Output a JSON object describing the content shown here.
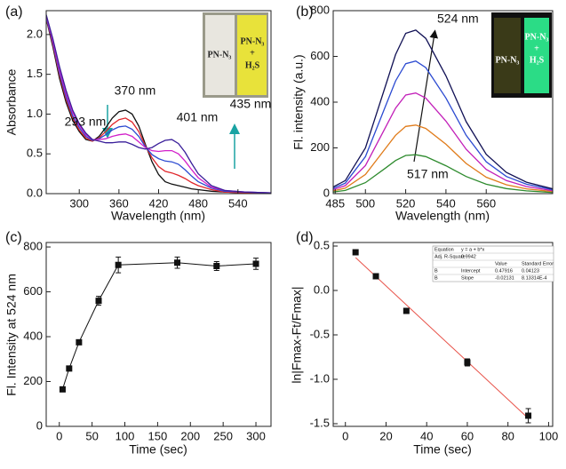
{
  "chart_data": [
    {
      "type": "line",
      "panel_label": "(a)",
      "xlabel": "Wavelength (nm)",
      "ylabel": "Absorbance",
      "xlim": [
        250,
        590
      ],
      "ylim": [
        0,
        2.3
      ],
      "xticks": [
        300,
        360,
        420,
        480,
        540
      ],
      "yticks": [
        {
          "value": 0,
          "label": "0.0"
        },
        0.5,
        {
          "value": 1,
          "label": "1.0"
        },
        1.5,
        {
          "value": 2,
          "label": "2.0"
        }
      ],
      "annotations": [
        "293 nm",
        "370 nm",
        "401 nm",
        "435 nm"
      ],
      "inset": {
        "labels": [
          "PN-N₃",
          "PN-N₃",
          "+",
          "H₂S"
        ]
      },
      "x": [
        250,
        260,
        270,
        280,
        290,
        300,
        310,
        320,
        330,
        340,
        350,
        360,
        370,
        380,
        390,
        400,
        410,
        420,
        430,
        440,
        450,
        460,
        470,
        480,
        500,
        520,
        550,
        590
      ],
      "series": [
        {
          "color": "#111111",
          "values": [
            2.2,
            1.85,
            1.45,
            1.15,
            0.92,
            0.78,
            0.68,
            0.66,
            0.72,
            0.83,
            0.95,
            1.03,
            1.05,
            1.0,
            0.85,
            0.62,
            0.4,
            0.24,
            0.15,
            0.12,
            0.1,
            0.08,
            0.06,
            0.05,
            0.03,
            0.02,
            0.01,
            0.01
          ]
        },
        {
          "color": "#e0262b",
          "values": [
            2.21,
            1.88,
            1.49,
            1.19,
            0.95,
            0.8,
            0.7,
            0.66,
            0.7,
            0.78,
            0.87,
            0.93,
            0.95,
            0.9,
            0.78,
            0.6,
            0.45,
            0.34,
            0.28,
            0.26,
            0.23,
            0.19,
            0.14,
            0.1,
            0.05,
            0.02,
            0.01,
            0.01
          ]
        },
        {
          "color": "#2b4ad1",
          "values": [
            2.22,
            1.9,
            1.52,
            1.22,
            0.98,
            0.83,
            0.72,
            0.67,
            0.69,
            0.74,
            0.8,
            0.84,
            0.85,
            0.81,
            0.72,
            0.59,
            0.49,
            0.44,
            0.41,
            0.4,
            0.37,
            0.3,
            0.22,
            0.15,
            0.07,
            0.03,
            0.02,
            0.01
          ]
        },
        {
          "color": "#d21fc9",
          "values": [
            2.24,
            1.92,
            1.56,
            1.26,
            1.02,
            0.86,
            0.74,
            0.68,
            0.68,
            0.69,
            0.72,
            0.74,
            0.75,
            0.72,
            0.65,
            0.58,
            0.54,
            0.53,
            0.54,
            0.54,
            0.5,
            0.41,
            0.3,
            0.2,
            0.08,
            0.04,
            0.02,
            0.01
          ]
        },
        {
          "color": "#3a1f9a",
          "values": [
            2.25,
            1.95,
            1.6,
            1.3,
            1.05,
            0.88,
            0.76,
            0.68,
            0.66,
            0.64,
            0.64,
            0.65,
            0.65,
            0.62,
            0.58,
            0.56,
            0.58,
            0.63,
            0.67,
            0.68,
            0.63,
            0.52,
            0.38,
            0.25,
            0.1,
            0.04,
            0.02,
            0.01
          ]
        }
      ]
    },
    {
      "type": "line",
      "panel_label": "(b)",
      "xlabel": "Wavelength (nm)",
      "ylabel": "Fl. intensity (a.u.)",
      "xlim": [
        484,
        593
      ],
      "ylim": [
        0,
        800
      ],
      "xticks": [
        485,
        500,
        520,
        540,
        560
      ],
      "yticks": [
        0,
        200,
        400,
        600,
        800
      ],
      "annotations": [
        "524 nm",
        "517 nm"
      ],
      "inset": {
        "labels": [
          "PN-N₃",
          "PN-N₃",
          "+",
          "H₂S"
        ]
      },
      "x": [
        484,
        490,
        500,
        510,
        515,
        520,
        525,
        530,
        540,
        550,
        560,
        570,
        580,
        593
      ],
      "series": [
        {
          "color": "#2e8b2e",
          "values": [
            7,
            14,
            48,
            112,
            145,
            167,
            170,
            162,
            122,
            75,
            41,
            22,
            12,
            5
          ]
        },
        {
          "color": "#e07b1a",
          "values": [
            12,
            24,
            84,
            198,
            255,
            294,
            300,
            285,
            216,
            132,
            72,
            39,
            21,
            9
          ]
        },
        {
          "color": "#c21fb8",
          "values": [
            18,
            35,
            123,
            290,
            374,
            431,
            440,
            418,
            317,
            194,
            106,
            57,
            31,
            13
          ]
        },
        {
          "color": "#2b4ad1",
          "values": [
            23,
            46,
            162,
            383,
            493,
            568,
            580,
            551,
            418,
            255,
            139,
            75,
            41,
            17
          ]
        },
        {
          "color": "#111155",
          "values": [
            29,
            57,
            200,
            472,
            608,
            701,
            715,
            679,
            515,
            315,
            172,
            93,
            50,
            21
          ]
        }
      ]
    },
    {
      "type": "scatter",
      "panel_label": "(c)",
      "xlabel": "Time (sec)",
      "ylabel": "Fl. Intensity at 524 nm",
      "xlim": [
        -20,
        323
      ],
      "ylim": [
        0,
        820
      ],
      "xticks": [
        0,
        50,
        100,
        150,
        200,
        250,
        300
      ],
      "yticks": [
        0,
        200,
        400,
        600,
        800
      ],
      "x": [
        5,
        15,
        30,
        60,
        90,
        180,
        240,
        300
      ],
      "series": [
        {
          "color": "#111111",
          "marker": "square",
          "connect": true,
          "values": [
            165,
            258,
            375,
            560,
            720,
            730,
            715,
            725
          ],
          "errors": [
            10,
            10,
            10,
            20,
            35,
            25,
            20,
            25
          ]
        }
      ]
    },
    {
      "type": "scatter",
      "panel_label": "(d)",
      "xlabel": "Time (sec)",
      "ylabel": "ln|Fmax-Ft/Fmax|",
      "xlim": [
        -6,
        102
      ],
      "ylim": [
        -1.53,
        0.54
      ],
      "xticks": [
        0,
        20,
        40,
        60,
        80,
        100
      ],
      "yticks": [
        0.5,
        {
          "value": 0,
          "label": "0.0"
        },
        -0.5,
        {
          "value": -1,
          "label": "-1.0"
        },
        -1.5
      ],
      "x": [
        5,
        15,
        30,
        60,
        90
      ],
      "series": [
        {
          "color": "#111111",
          "marker": "square",
          "connect": false,
          "values": [
            0.43,
            0.16,
            -0.23,
            -0.81,
            -1.41
          ],
          "errors": [
            0.02,
            0.02,
            0.02,
            0.04,
            0.08
          ]
        },
        {
          "color": "#e8534a",
          "marker": "none",
          "connect": true,
          "x": [
            5,
            90
          ],
          "values": [
            0.37,
            -1.44
          ]
        }
      ],
      "fit_table": [
        [
          "Equation",
          "y = a + b*x",
          null,
          null
        ],
        [
          "Adj. R-Square",
          "0.9942",
          null,
          null
        ],
        [
          null,
          null,
          "Value",
          "Standard Error"
        ],
        [
          "B",
          "Intercept",
          "0.47916",
          "0.04123"
        ],
        [
          "B",
          "Slope",
          "-0.02131",
          "8.13314E-4"
        ]
      ]
    }
  ]
}
